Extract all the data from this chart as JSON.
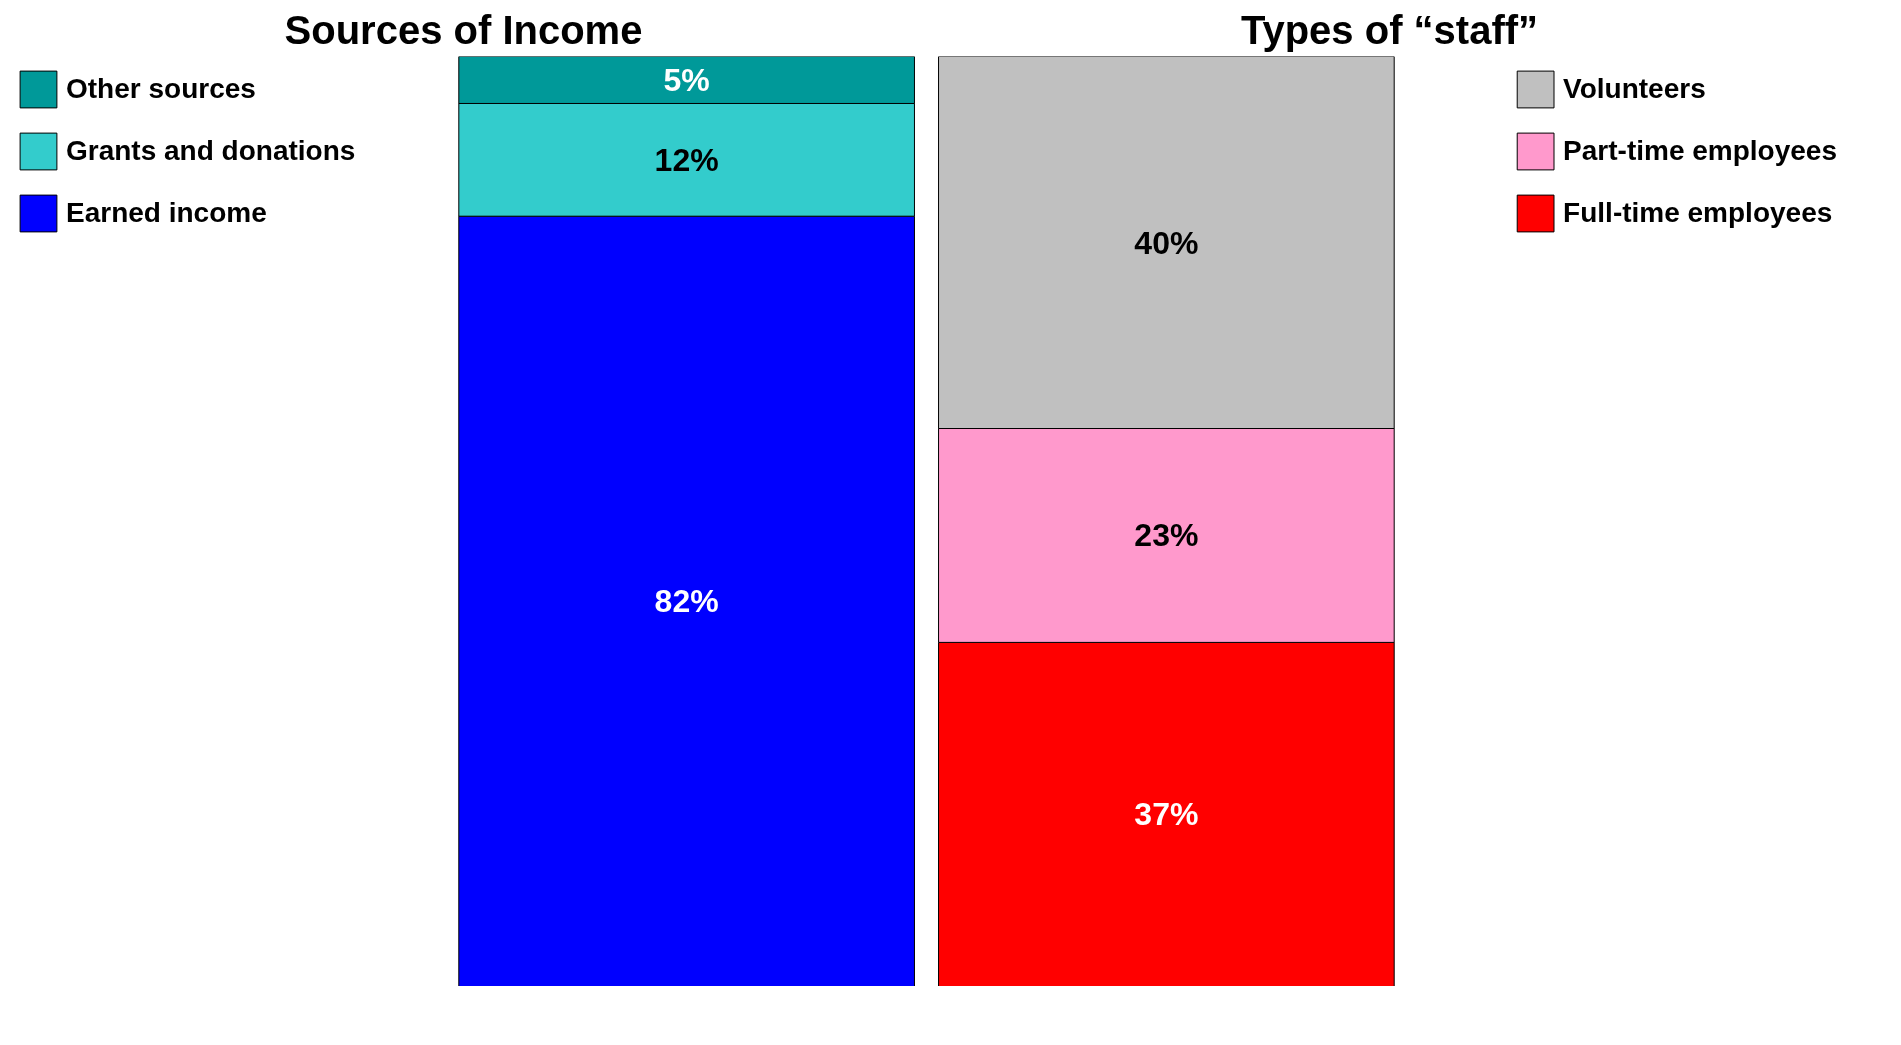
{
  "chart_data": [
    {
      "type": "bar",
      "title": "Sources of Income",
      "categories": [
        null
      ],
      "stacked": true,
      "legend": "left",
      "tick_labels": false,
      "grid": false,
      "series": [
        {
          "name": "Earned income",
          "color": "#0000ff",
          "values": [
            82
          ],
          "value_labels": [
            "82%"
          ]
        },
        {
          "name": "Grants and donations",
          "color": "#33cccc",
          "values": [
            12
          ],
          "value_labels": [
            "12%"
          ]
        },
        {
          "name": "Other sources",
          "color": "#009999",
          "values": [
            5
          ],
          "value_labels": [
            "5%"
          ]
        }
      ]
    },
    {
      "type": "bar",
      "title": "Types of “staff”",
      "categories": [
        null
      ],
      "stacked": true,
      "legend": "right",
      "tick_labels": false,
      "grid": false,
      "series": [
        {
          "name": "Full-time employees",
          "color": "#ff0000",
          "values": [
            37
          ],
          "value_labels": [
            "37%"
          ]
        },
        {
          "name": "Part-time employees",
          "color": "#ff99cc",
          "values": [
            23
          ],
          "value_labels": [
            "23%"
          ]
        },
        {
          "name": "Volunteers",
          "color": "#c0c0c0",
          "values": [
            40
          ],
          "value_labels": [
            "40%"
          ]
        }
      ]
    }
  ]
}
